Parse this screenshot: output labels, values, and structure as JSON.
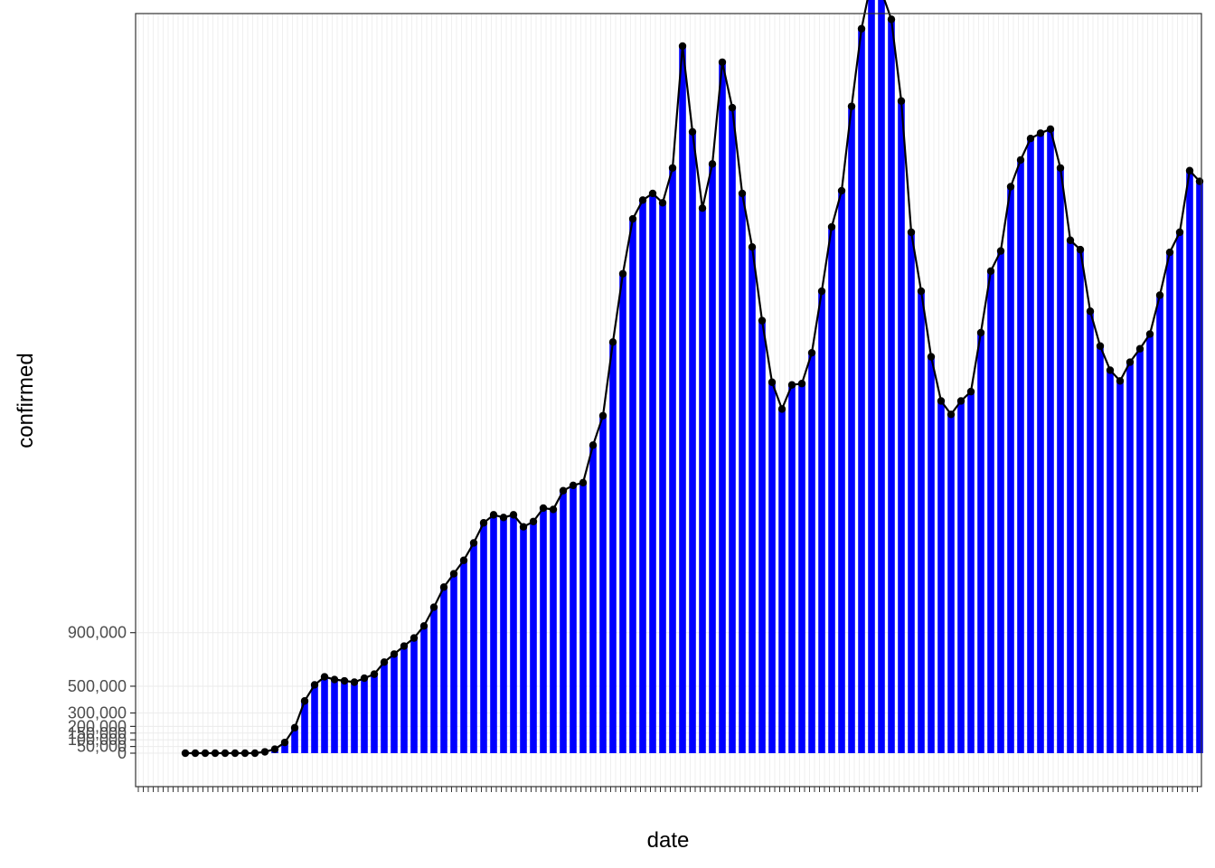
{
  "chart_data": {
    "type": "bar",
    "title": "",
    "xlabel": "date",
    "ylabel": "confirmed",
    "grid": true,
    "legend": "none",
    "bar_color": "#0000ff",
    "line_color": "#000000",
    "y_ticks": [
      0,
      50000,
      100000,
      150000,
      200000,
      300000,
      500000,
      900000
    ],
    "y_tick_labels": [
      "0",
      "50,000",
      "100,000",
      "150,000",
      "200,000",
      "300,000",
      "500,000",
      "900,000"
    ],
    "ylim": [
      -20000,
      6200000
    ],
    "values": [
      0,
      0,
      0,
      0,
      0,
      0,
      0,
      0,
      10000,
      30000,
      80000,
      190000,
      390000,
      510000,
      570000,
      550000,
      540000,
      530000,
      560000,
      590000,
      680000,
      740000,
      800000,
      860000,
      950000,
      1090000,
      1240000,
      1340000,
      1440000,
      1570000,
      1720000,
      1780000,
      1760000,
      1780000,
      1690000,
      1730000,
      1830000,
      1820000,
      1960000,
      2000000,
      2020000,
      2300000,
      2520000,
      3070000,
      3580000,
      3990000,
      4130000,
      4180000,
      4110000,
      4370000,
      5280000,
      4640000,
      4070000,
      4400000,
      5160000,
      4820000,
      4180000,
      3780000,
      3230000,
      2770000,
      2570000,
      2750000,
      2760000,
      2990000,
      3450000,
      3930000,
      4200000,
      4830000,
      5410000,
      5770000,
      5690000,
      5480000,
      4870000,
      3890000,
      3450000,
      2960000,
      2630000,
      2530000,
      2630000,
      2700000,
      3140000,
      3600000,
      3750000,
      4230000,
      4430000,
      4590000,
      4630000,
      4660000,
      4370000,
      3830000,
      3760000,
      3300000,
      3040000,
      2860000,
      2780000,
      2920000,
      3020000,
      3130000,
      3420000,
      3740000,
      3890000,
      4350000,
      4270000
    ]
  }
}
